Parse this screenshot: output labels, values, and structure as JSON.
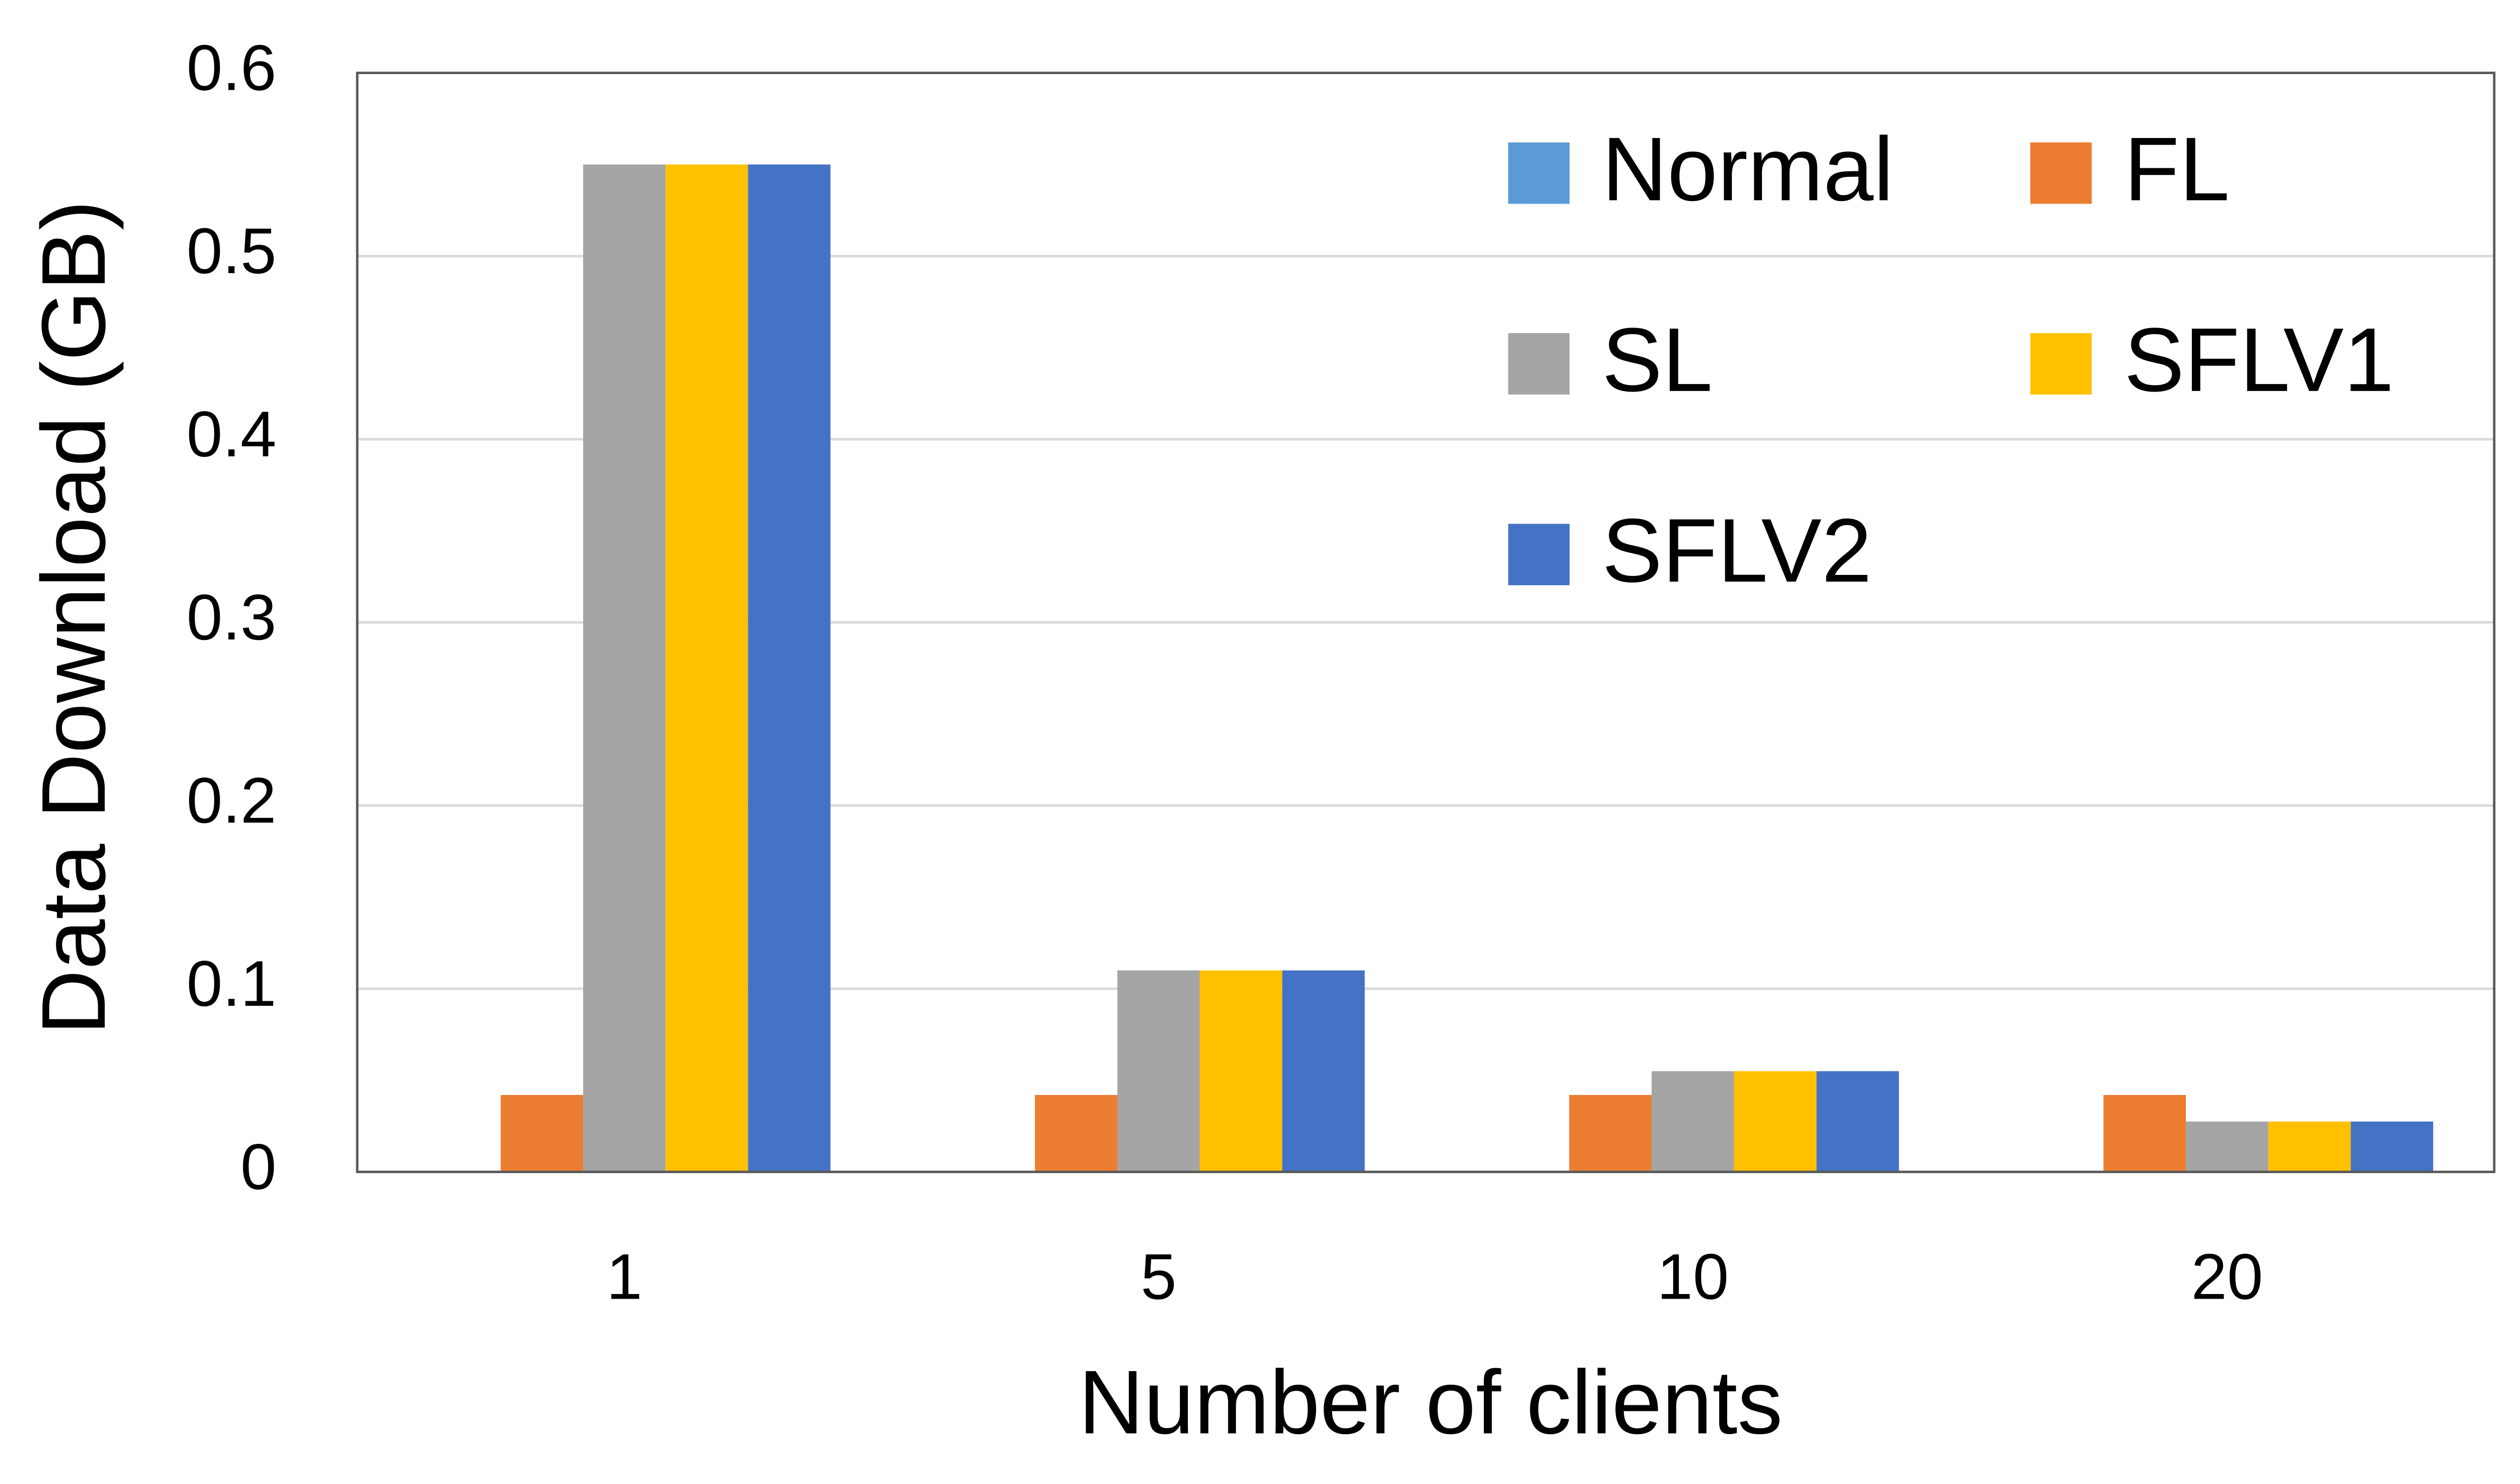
{
  "chart_data": {
    "type": "bar",
    "x_label": "Number of clients",
    "y_label": "Data Download (GB)",
    "categories": [
      "1",
      "5",
      "10",
      "20"
    ],
    "series": [
      {
        "name": "Normal",
        "color": "#5b9bd5",
        "values": [
          0,
          0,
          0,
          0
        ]
      },
      {
        "name": "FL",
        "color": "#ed7d31",
        "values": [
          0.042,
          0.042,
          0.042,
          0.042
        ]
      },
      {
        "name": "SL",
        "color": "#a5a5a5",
        "values": [
          0.55,
          0.11,
          0.055,
          0.0275
        ]
      },
      {
        "name": "SFLV1",
        "color": "#ffc000",
        "values": [
          0.55,
          0.11,
          0.055,
          0.0275
        ]
      },
      {
        "name": "SFLV2",
        "color": "#4472c4",
        "values": [
          0.55,
          0.11,
          0.055,
          0.0275
        ]
      }
    ],
    "ylim": [
      0,
      0.6
    ],
    "yticks": [
      0,
      0.1,
      0.2,
      0.3,
      0.4,
      0.5,
      0.6
    ],
    "grid": true,
    "legend": "top-right"
  }
}
